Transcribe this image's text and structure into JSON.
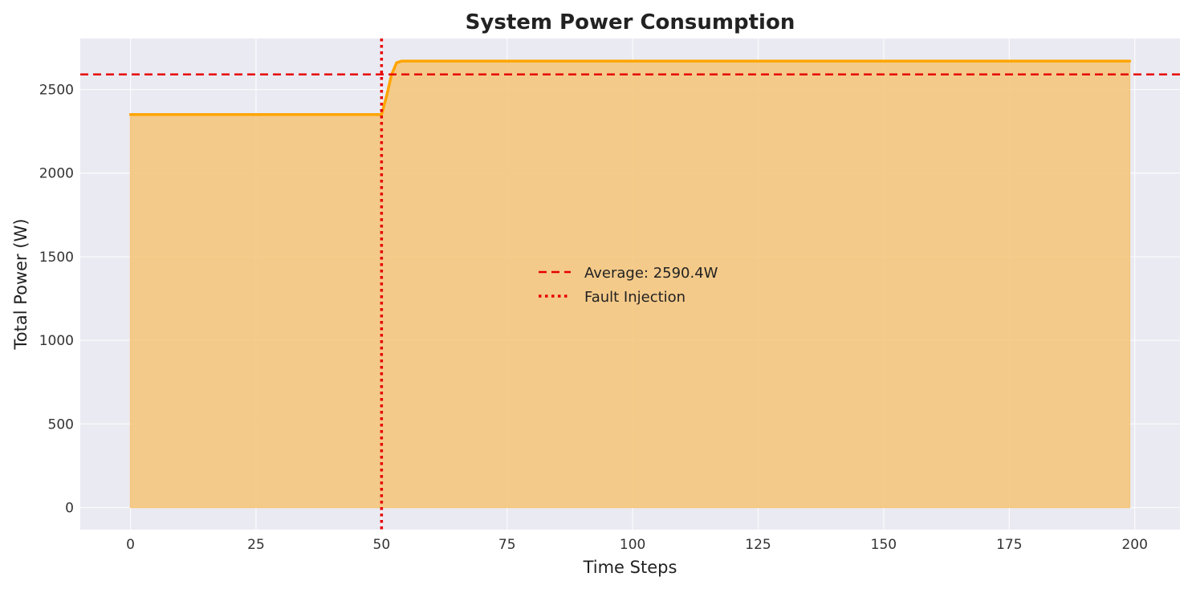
{
  "chart_data": {
    "type": "area",
    "title": "System Power Consumption",
    "xlabel": "Time Steps",
    "ylabel": "Total Power (W)",
    "xlim": [
      -10,
      209
    ],
    "ylim": [
      -132,
      2805
    ],
    "xticks": [
      0,
      25,
      50,
      75,
      100,
      125,
      150,
      175,
      200
    ],
    "yticks": [
      0,
      500,
      1000,
      1500,
      2000,
      2500
    ],
    "grid": true,
    "legend_placement": "center",
    "series": [
      {
        "x": [
          0,
          50,
          51,
          52,
          53,
          54,
          199
        ],
        "y": [
          2350,
          2350,
          2460,
          2590,
          2660,
          2670,
          2670
        ],
        "color": "#FFA500",
        "fill_color": "#F5C77E"
      }
    ],
    "reference_lines": [
      {
        "kind": "horizontal",
        "value": 2590.4,
        "label": "Average: 2590.4W",
        "color": "#E60000",
        "style": "dashed"
      },
      {
        "kind": "vertical",
        "value": 50,
        "label": "Fault Injection",
        "color": "#E60000",
        "style": "dotted"
      }
    ],
    "colors": {
      "plot_background": "#EAEAF2",
      "grid": "#FFFFFF"
    }
  }
}
